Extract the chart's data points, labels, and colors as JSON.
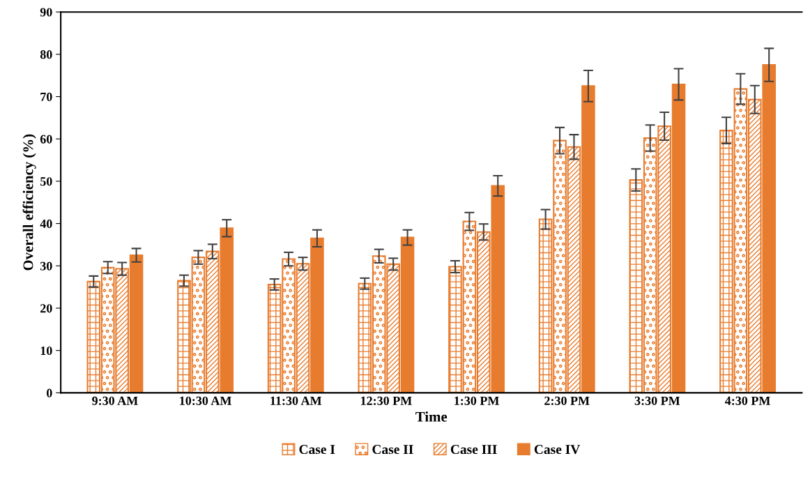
{
  "chart_data": {
    "type": "bar",
    "xlabel": "Time",
    "ylabel": "Overall efficiency (%)",
    "categories": [
      "9:30 AM",
      "10:30 AM",
      "11:30 AM",
      "12:30 PM",
      "1:30 PM",
      "2:30 PM",
      "3:30 PM",
      "4:30 PM"
    ],
    "series": [
      {
        "name": "Case I",
        "color": "#e87c2e",
        "values": [
          26.3,
          26.5,
          25.6,
          25.8,
          29.8,
          41.0,
          50.3,
          62.0
        ],
        "errors": [
          1.3,
          1.3,
          1.3,
          1.3,
          1.4,
          2.3,
          2.6,
          3.1
        ]
      },
      {
        "name": "Case II",
        "color": "#e87c2e",
        "values": [
          29.6,
          32.0,
          31.6,
          32.3,
          40.5,
          59.6,
          60.2,
          71.8
        ],
        "errors": [
          1.4,
          1.6,
          1.6,
          1.6,
          2.1,
          3.1,
          3.1,
          3.6
        ]
      },
      {
        "name": "Case III",
        "color": "#e87c2e",
        "values": [
          29.3,
          33.4,
          30.5,
          30.4,
          38.0,
          58.1,
          63.0,
          69.3
        ],
        "errors": [
          1.5,
          1.7,
          1.5,
          1.4,
          1.9,
          2.9,
          3.3,
          3.3
        ]
      },
      {
        "name": "Case IV",
        "color": "#e87c2e",
        "values": [
          32.5,
          38.9,
          36.5,
          36.7,
          48.9,
          72.5,
          72.9,
          77.5
        ],
        "errors": [
          1.6,
          2.0,
          2.0,
          1.8,
          2.4,
          3.7,
          3.7,
          3.9
        ]
      }
    ],
    "ylim": [
      0,
      90
    ],
    "yticks": [
      0,
      10,
      20,
      30,
      40,
      50,
      60,
      70,
      80,
      90
    ],
    "grid": false,
    "legend": "bottom"
  }
}
